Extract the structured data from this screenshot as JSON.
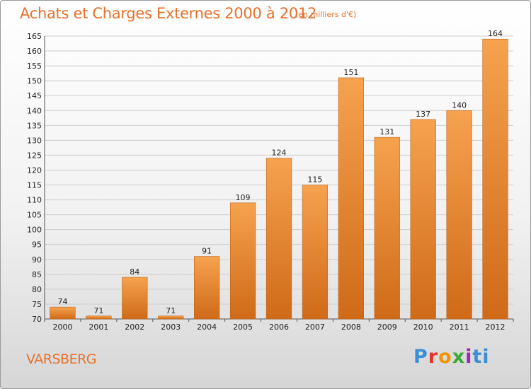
{
  "header": {
    "title": "Achats et Charges Externes 2000 à 2012",
    "subtitle": "(en milliers d'€)"
  },
  "footer": {
    "commune": "VARSBERG",
    "logo_text": "Proxiti"
  },
  "colors": {
    "accent": "#e8702a",
    "bar_light": "#f6a24f",
    "bar_dark": "#cf6a18",
    "grid": "#cccccc"
  },
  "chart_data": {
    "type": "bar",
    "title": "Achats et Charges Externes 2000 à 2012",
    "subtitle": "(en milliers d'€)",
    "xlabel": "",
    "ylabel": "",
    "categories": [
      "2000",
      "2001",
      "2002",
      "2003",
      "2004",
      "2005",
      "2006",
      "2007",
      "2008",
      "2009",
      "2010",
      "2011",
      "2012"
    ],
    "values": [
      74,
      71,
      84,
      71,
      91,
      109,
      124,
      115,
      151,
      131,
      137,
      140,
      164
    ],
    "data_labels": [
      "74",
      "71",
      "84",
      "71",
      "91",
      "109",
      "124",
      "115",
      "151",
      "131",
      "137",
      "140",
      "164"
    ],
    "ylim": [
      70,
      165
    ],
    "yticks": [
      70,
      75,
      80,
      85,
      90,
      95,
      100,
      105,
      110,
      115,
      120,
      125,
      130,
      135,
      140,
      145,
      150,
      155,
      160,
      165
    ],
    "ytick_labels": [
      "70",
      "75",
      "80",
      "85",
      "90",
      "95",
      "100",
      "105",
      "110",
      "115",
      "120",
      "125",
      "130",
      "135",
      "140",
      "145",
      "150",
      "155",
      "160",
      "165"
    ],
    "grid": true,
    "legend": "none"
  }
}
